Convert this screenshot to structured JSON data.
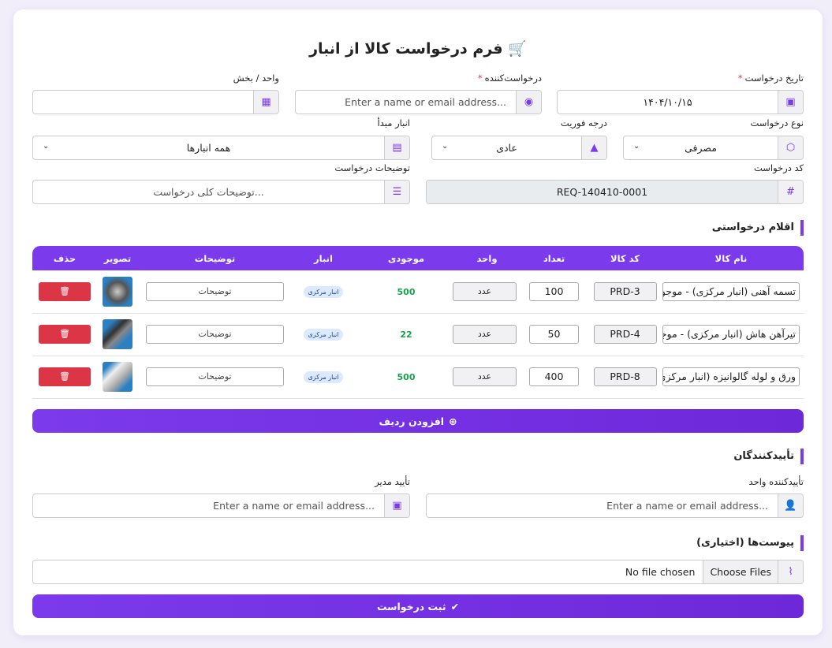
{
  "title": "فرم درخواست کالا از انبار",
  "fields": {
    "request_date": {
      "label": "تاریخ درخواست",
      "value": "۱۴۰۴/۱۰/۱۵"
    },
    "requester": {
      "label": "درخواست‌کننده",
      "placeholder": "Enter a name or email address..."
    },
    "unit": {
      "label": "واحد / بخش",
      "value": ""
    },
    "request_type": {
      "label": "نوع درخواست",
      "value": "مصرفی"
    },
    "urgency": {
      "label": "درجه فوریت",
      "value": "عادی"
    },
    "source_warehouse": {
      "label": "انبار مبدأ",
      "value": "همه انبارها"
    },
    "request_code": {
      "label": "کد درخواست",
      "value": "REQ-140410-0001"
    },
    "description": {
      "label": "توضیحات درخواست",
      "placeholder": "توضیحات کلی درخواست..."
    }
  },
  "items_section": {
    "title": "اقلام درخواستی",
    "columns": [
      "نام کالا",
      "کد کالا",
      "تعداد",
      "واحد",
      "موجودی",
      "انبار",
      "توضیحات",
      "تصویر",
      "حذف"
    ],
    "rows": [
      {
        "name": "تسمه آهنی (انبار مرکزی) - موجودی",
        "code": "PRD-3",
        "qty": "100",
        "unit": "عدد",
        "stock": "500",
        "warehouse": "انبار مرکزی",
        "desc_placeholder": "توضیحات"
      },
      {
        "name": "تیرآهن هاش (انبار مرکزی) - موجو",
        "code": "PRD-4",
        "qty": "50",
        "unit": "عدد",
        "stock": "22",
        "warehouse": "انبار مرکزی",
        "desc_placeholder": "توضیحات"
      },
      {
        "name": "ورق و لوله گالوانیزه (انبار مرکزی) -",
        "code": "PRD-8",
        "qty": "400",
        "unit": "عدد",
        "stock": "500",
        "warehouse": "انبار مرکزی",
        "desc_placeholder": "توضیحات"
      }
    ],
    "add_row": "افزودن ردیف"
  },
  "approvers": {
    "title": "تأییدکنندگان",
    "unit_approver": {
      "label": "تأییدکننده واحد",
      "placeholder": "Enter a name or email address..."
    },
    "manager": {
      "label": "تأیید مدیر",
      "placeholder": "Enter a name or email address..."
    }
  },
  "attachments": {
    "title": "پیوست‌ها (اختیاری)",
    "choose": "Choose Files",
    "status": "No file chosen"
  },
  "submit": "ثبت درخواست",
  "colors": {
    "accent": "#7c3aed",
    "danger": "#dc3545",
    "success": "#16a34a"
  }
}
